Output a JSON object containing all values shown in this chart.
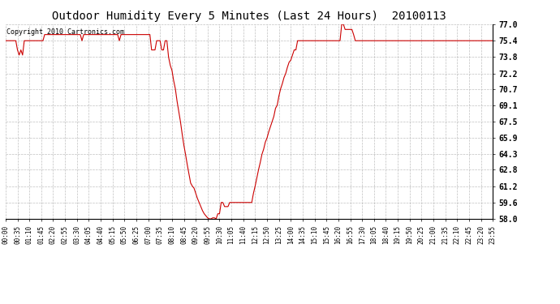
{
  "title": "Outdoor Humidity Every 5 Minutes (Last 24 Hours)  20100113",
  "copyright": "Copyright 2010 Cartronics.com",
  "line_color": "#cc0000",
  "bg_color": "#ffffff",
  "plot_bg_color": "#ffffff",
  "grid_color": "#b0b0b0",
  "ylim": [
    58.0,
    77.0
  ],
  "yticks": [
    58.0,
    59.6,
    61.2,
    62.8,
    64.3,
    65.9,
    67.5,
    69.1,
    70.7,
    72.2,
    73.8,
    75.4,
    77.0
  ],
  "tick_interval": 7,
  "humidity_values": [
    75.4,
    75.4,
    75.4,
    75.4,
    75.4,
    75.4,
    75.4,
    74.5,
    74.0,
    74.5,
    74.0,
    75.4,
    75.4,
    75.4,
    75.4,
    75.4,
    75.4,
    75.4,
    75.4,
    75.4,
    75.4,
    75.4,
    75.4,
    76.0,
    76.0,
    76.0,
    76.0,
    76.0,
    76.0,
    76.0,
    76.0,
    76.0,
    76.0,
    76.0,
    76.0,
    76.0,
    76.0,
    76.0,
    76.0,
    76.0,
    76.0,
    76.0,
    76.0,
    76.0,
    76.0,
    75.4,
    76.0,
    76.0,
    76.0,
    76.0,
    76.0,
    76.0,
    76.0,
    76.0,
    76.0,
    76.0,
    76.0,
    76.0,
    76.0,
    76.0,
    76.0,
    76.0,
    76.0,
    76.0,
    76.0,
    76.0,
    76.0,
    75.4,
    76.0,
    76.0,
    76.0,
    76.0,
    76.0,
    76.0,
    76.0,
    76.0,
    76.0,
    76.0,
    76.0,
    76.0,
    76.0,
    76.0,
    76.0,
    76.0,
    76.0,
    76.0,
    74.5,
    74.5,
    74.5,
    75.4,
    75.4,
    75.4,
    74.5,
    74.5,
    75.4,
    75.4,
    73.8,
    73.0,
    72.5,
    71.5,
    70.7,
    69.5,
    68.5,
    67.5,
    66.3,
    65.2,
    64.3,
    63.3,
    62.4,
    61.5,
    61.2,
    61.0,
    60.5,
    60.0,
    59.6,
    59.2,
    58.8,
    58.5,
    58.3,
    58.1,
    58.0,
    58.0,
    58.1,
    58.1,
    58.0,
    58.5,
    58.5,
    59.6,
    59.6,
    59.2,
    59.2,
    59.2,
    59.6,
    59.6,
    59.6,
    59.6,
    59.6,
    59.6,
    59.6,
    59.6,
    59.6,
    59.6,
    59.6,
    59.6,
    59.6,
    59.6,
    60.5,
    61.2,
    62.0,
    62.8,
    63.5,
    64.3,
    64.8,
    65.5,
    65.9,
    66.5,
    67.0,
    67.5,
    68.0,
    68.8,
    69.1,
    70.0,
    70.7,
    71.2,
    71.8,
    72.2,
    72.8,
    73.3,
    73.5,
    74.0,
    74.5,
    74.5,
    75.4,
    75.4,
    75.4,
    75.4,
    75.4,
    75.4,
    75.4,
    75.4,
    75.4,
    75.4,
    75.4,
    75.4,
    75.4,
    75.4,
    75.4,
    75.4,
    75.4,
    75.4,
    75.4,
    75.4,
    75.4,
    75.4,
    75.4,
    75.4,
    75.4,
    75.4,
    77.0,
    77.0,
    76.5,
    76.5,
    76.5,
    76.5,
    76.5,
    76.0,
    75.4,
    75.4,
    75.4,
    75.4,
    75.4,
    75.4,
    75.4,
    75.4,
    75.4,
    75.4,
    75.4,
    75.4,
    75.4,
    75.4,
    75.4,
    75.4,
    75.4,
    75.4,
    75.4,
    75.4,
    75.4,
    75.4,
    75.4,
    75.4,
    75.4,
    75.4,
    75.4,
    75.4,
    75.4,
    75.4,
    75.4,
    75.4,
    75.4,
    75.4,
    75.4,
    75.4,
    75.4,
    75.4,
    75.4,
    75.4,
    75.4,
    75.4,
    75.4,
    75.4,
    75.4,
    75.4,
    75.4,
    75.4,
    75.4,
    75.4,
    75.4,
    75.4,
    75.4,
    75.4,
    75.4,
    75.4,
    75.4,
    75.4,
    75.4,
    75.4,
    75.4,
    75.4,
    75.4,
    75.4,
    75.4,
    75.4,
    75.4,
    75.4,
    75.4,
    75.4,
    75.4,
    75.4,
    75.4,
    75.4,
    75.4,
    75.4,
    75.4,
    75.4,
    75.4,
    75.4,
    75.4,
    75.4
  ]
}
